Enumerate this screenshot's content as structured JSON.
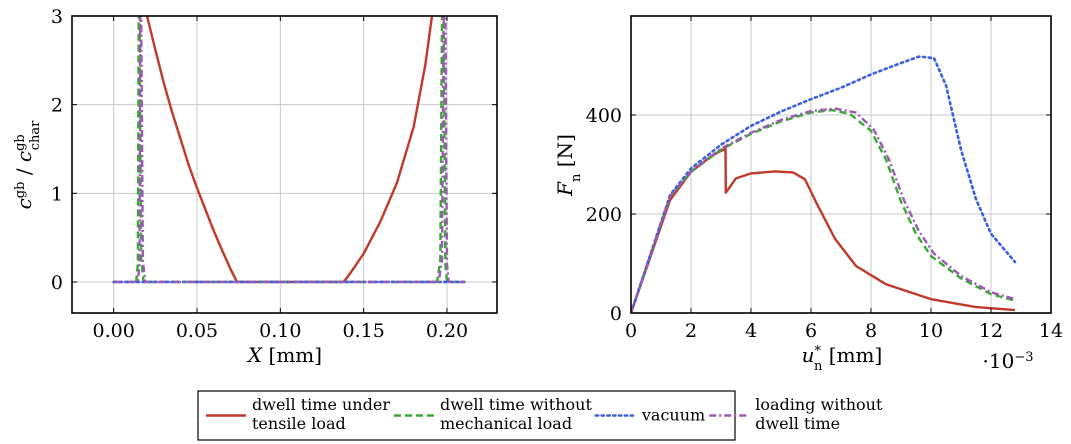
{
  "colors": {
    "red": "#c0392b",
    "green": "#3aa832",
    "blue": "#3b5fe0",
    "purple": "#9b59b6"
  },
  "legend": {
    "items": [
      {
        "key": "red",
        "style": "solid",
        "lines": [
          "dwell time under",
          "tensile load"
        ]
      },
      {
        "key": "green",
        "style": "dashed",
        "lines": [
          "dwell time without",
          "mechanical load"
        ]
      },
      {
        "key": "blue",
        "style": "dotted",
        "lines": [
          "vacuum"
        ]
      },
      {
        "key": "purple",
        "style": "dashdot",
        "lines": [
          "loading without",
          "dwell time"
        ]
      }
    ]
  },
  "chart_data": [
    {
      "type": "line",
      "xlabel": "X [mm]",
      "ylabel": "c^gb / c^gb_char",
      "xlim": [
        -0.025,
        0.23
      ],
      "ylim": [
        -0.35,
        3
      ],
      "xticks": [
        "0.00",
        "0.05",
        "0.10",
        "0.15",
        "0.20"
      ],
      "xtick_values": [
        0,
        0.05,
        0.1,
        0.15,
        0.2
      ],
      "yticks": [
        "0",
        "1",
        "2",
        "3"
      ],
      "ytick_values": [
        0,
        1,
        2,
        3
      ],
      "grid": true,
      "series": [
        {
          "key": "red",
          "points": [
            [
              0.02,
              3.0
            ],
            [
              0.025,
              2.62
            ],
            [
              0.03,
              2.25
            ],
            [
              0.035,
              1.92
            ],
            [
              0.04,
              1.62
            ],
            [
              0.045,
              1.32
            ],
            [
              0.05,
              1.06
            ],
            [
              0.055,
              0.82
            ],
            [
              0.06,
              0.58
            ],
            [
              0.065,
              0.36
            ],
            [
              0.07,
              0.15
            ],
            [
              0.074,
              0.0
            ],
            [
              0.138,
              0.0
            ],
            [
              0.142,
              0.1
            ],
            [
              0.15,
              0.32
            ],
            [
              0.16,
              0.68
            ],
            [
              0.17,
              1.12
            ],
            [
              0.18,
              1.75
            ],
            [
              0.187,
              2.45
            ],
            [
              0.191,
              3.0
            ]
          ]
        },
        {
          "key": "green",
          "points": [
            [
              0.0,
              0.0
            ],
            [
              0.0135,
              0.0
            ],
            [
              0.0145,
              0.2
            ],
            [
              0.015,
              3.0
            ],
            [
              0.0155,
              3.0
            ],
            [
              0.0165,
              0.25
            ],
            [
              0.018,
              0.0
            ],
            [
              0.194,
              0.0
            ],
            [
              0.196,
              0.25
            ],
            [
              0.197,
              3.0
            ],
            [
              0.198,
              3.0
            ],
            [
              0.199,
              0.2
            ],
            [
              0.2,
              0.0
            ],
            [
              0.211,
              0.0
            ]
          ]
        },
        {
          "key": "blue",
          "points": [
            [
              0.0,
              0.0
            ],
            [
              0.211,
              0.0
            ]
          ]
        },
        {
          "key": "purple",
          "points": [
            [
              0.0,
              0.0
            ],
            [
              0.0145,
              0.0
            ],
            [
              0.0155,
              0.2
            ],
            [
              0.016,
              3.0
            ],
            [
              0.0165,
              3.0
            ],
            [
              0.0175,
              0.25
            ],
            [
              0.019,
              0.0
            ],
            [
              0.195,
              0.0
            ],
            [
              0.197,
              0.25
            ],
            [
              0.198,
              3.0
            ],
            [
              0.199,
              3.0
            ],
            [
              0.2,
              0.2
            ],
            [
              0.201,
              0.0
            ],
            [
              0.211,
              0.0
            ]
          ]
        }
      ]
    },
    {
      "type": "line",
      "xlabel": "u*_n [mm]",
      "ylabel": "F_n [N]",
      "xscale_label": "·10^-3",
      "xlim": [
        0,
        14
      ],
      "ylim": [
        0,
        600
      ],
      "xticks": [
        "0",
        "2",
        "4",
        "6",
        "8",
        "10",
        "12",
        "14"
      ],
      "xtick_values": [
        0,
        2,
        4,
        6,
        8,
        10,
        12,
        14
      ],
      "yticks": [
        "0",
        "200",
        "400"
      ],
      "ytick_values": [
        0,
        200,
        400
      ],
      "grid": true,
      "series": [
        {
          "key": "red",
          "points": [
            [
              0,
              0
            ],
            [
              1.3,
              228
            ],
            [
              2.0,
              285
            ],
            [
              2.7,
              318
            ],
            [
              3.15,
              332
            ],
            [
              3.16,
              243
            ],
            [
              3.5,
              272
            ],
            [
              4.0,
              282
            ],
            [
              4.8,
              286
            ],
            [
              5.4,
              284
            ],
            [
              5.8,
              270
            ],
            [
              6.2,
              220
            ],
            [
              6.8,
              150
            ],
            [
              7.5,
              95
            ],
            [
              8.5,
              58
            ],
            [
              10.0,
              28
            ],
            [
              11.5,
              12
            ],
            [
              12.8,
              6
            ]
          ]
        },
        {
          "key": "green",
          "points": [
            [
              0,
              0
            ],
            [
              1.3,
              235
            ],
            [
              2.0,
              285
            ],
            [
              3.0,
              330
            ],
            [
              4.0,
              362
            ],
            [
              5.0,
              387
            ],
            [
              6.0,
              405
            ],
            [
              6.7,
              410
            ],
            [
              7.3,
              402
            ],
            [
              8.0,
              368
            ],
            [
              8.5,
              310
            ],
            [
              9.0,
              225
            ],
            [
              9.5,
              160
            ],
            [
              10.0,
              115
            ],
            [
              11.0,
              70
            ],
            [
              12.0,
              38
            ],
            [
              12.8,
              25
            ]
          ]
        },
        {
          "key": "blue",
          "points": [
            [
              0,
              0
            ],
            [
              1.3,
              238
            ],
            [
              2.0,
              292
            ],
            [
              3.0,
              340
            ],
            [
              4.0,
              378
            ],
            [
              5.0,
              407
            ],
            [
              6.0,
              432
            ],
            [
              7.0,
              455
            ],
            [
              8.0,
              482
            ],
            [
              9.0,
              505
            ],
            [
              9.6,
              518
            ],
            [
              10.1,
              515
            ],
            [
              10.5,
              460
            ],
            [
              11.0,
              330
            ],
            [
              11.5,
              230
            ],
            [
              12.0,
              160
            ],
            [
              12.8,
              103
            ]
          ]
        },
        {
          "key": "purple",
          "points": [
            [
              0,
              0
            ],
            [
              1.3,
              236
            ],
            [
              2.0,
              286
            ],
            [
              3.0,
              332
            ],
            [
              4.0,
              364
            ],
            [
              5.0,
              390
            ],
            [
              6.0,
              408
            ],
            [
              6.8,
              413
            ],
            [
              7.5,
              405
            ],
            [
              8.1,
              370
            ],
            [
              8.6,
              310
            ],
            [
              9.1,
              228
            ],
            [
              9.6,
              165
            ],
            [
              10.1,
              120
            ],
            [
              11.0,
              75
            ],
            [
              12.0,
              42
            ],
            [
              12.8,
              28
            ]
          ]
        }
      ]
    }
  ]
}
